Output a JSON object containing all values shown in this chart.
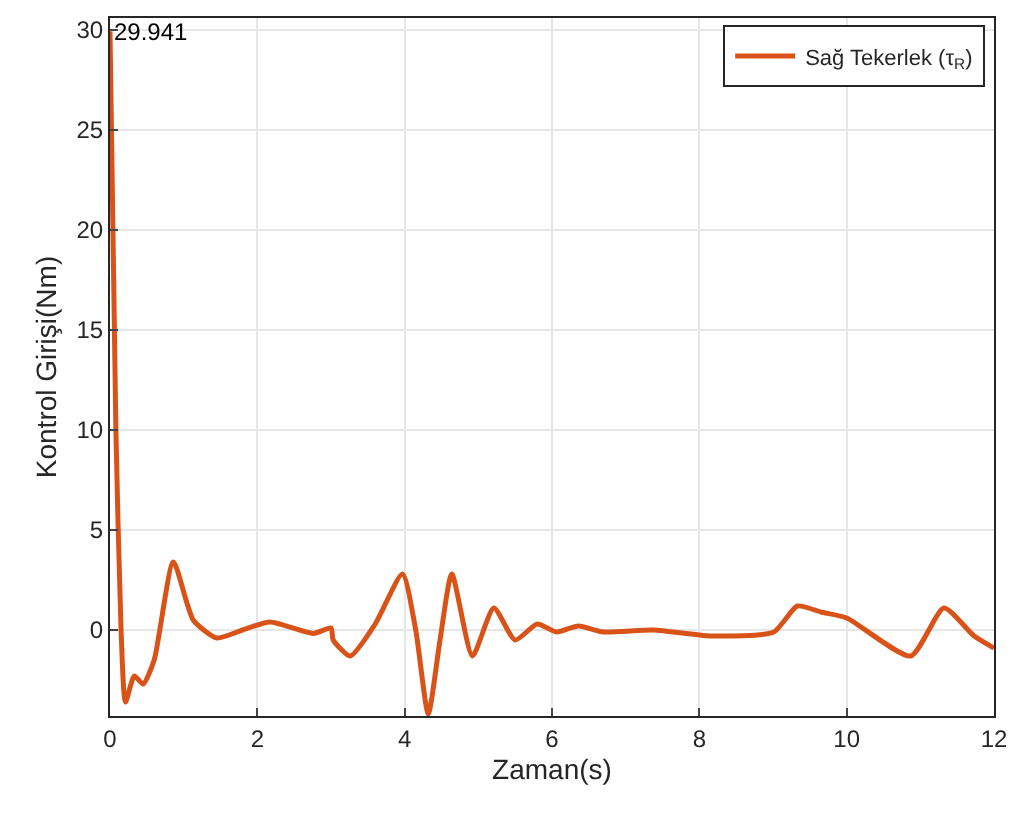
{
  "chart_data": {
    "type": "line",
    "xlabel": "Zaman(s)",
    "ylabel": "Kontrol Girişi(Nm)",
    "x": [
      0,
      0.08,
      0.15,
      0.21,
      0.33,
      0.45,
      0.6,
      0.86,
      1.13,
      1.45,
      1.8,
      2.17,
      2.76,
      3.0,
      3.03,
      3.26,
      3.6,
      3.97,
      4.15,
      4.32,
      4.48,
      4.64,
      4.92,
      5.21,
      5.5,
      5.8,
      6.06,
      6.36,
      6.7,
      7.38,
      8.15,
      9.01,
      9.33,
      9.65,
      10.0,
      10.87,
      11.32,
      11.73,
      12
    ],
    "series": [
      {
        "name": "Sağ Tekerlek (τ$_{R}$)",
        "color": "#d95319",
        "values": [
          29.941,
          10,
          0,
          -3.6,
          -2.3,
          -2.7,
          -1.5,
          3.4,
          0.5,
          -0.4,
          0.0,
          0.4,
          -0.17,
          0.1,
          -0.5,
          -1.3,
          0.3,
          2.8,
          0,
          -4.2,
          -0.5,
          2.8,
          -1.3,
          1.1,
          -0.5,
          0.3,
          -0.1,
          0.2,
          -0.1,
          0.0,
          -0.3,
          -0.1,
          1.2,
          0.9,
          0.6,
          -1.3,
          1.1,
          -0.3,
          -0.9
        ]
      }
    ],
    "annotations": [
      {
        "text": "29.941",
        "x": 0,
        "y": 29.941
      }
    ],
    "xlim": [
      0,
      12
    ],
    "xticks": [
      0,
      2,
      4,
      6,
      8,
      10,
      12
    ],
    "ylim": [
      -4.3,
      30.6
    ],
    "yticks": [
      0,
      5,
      10,
      15,
      20,
      25,
      30
    ],
    "grid": true,
    "legend": "top right",
    "line_style": "solid"
  }
}
